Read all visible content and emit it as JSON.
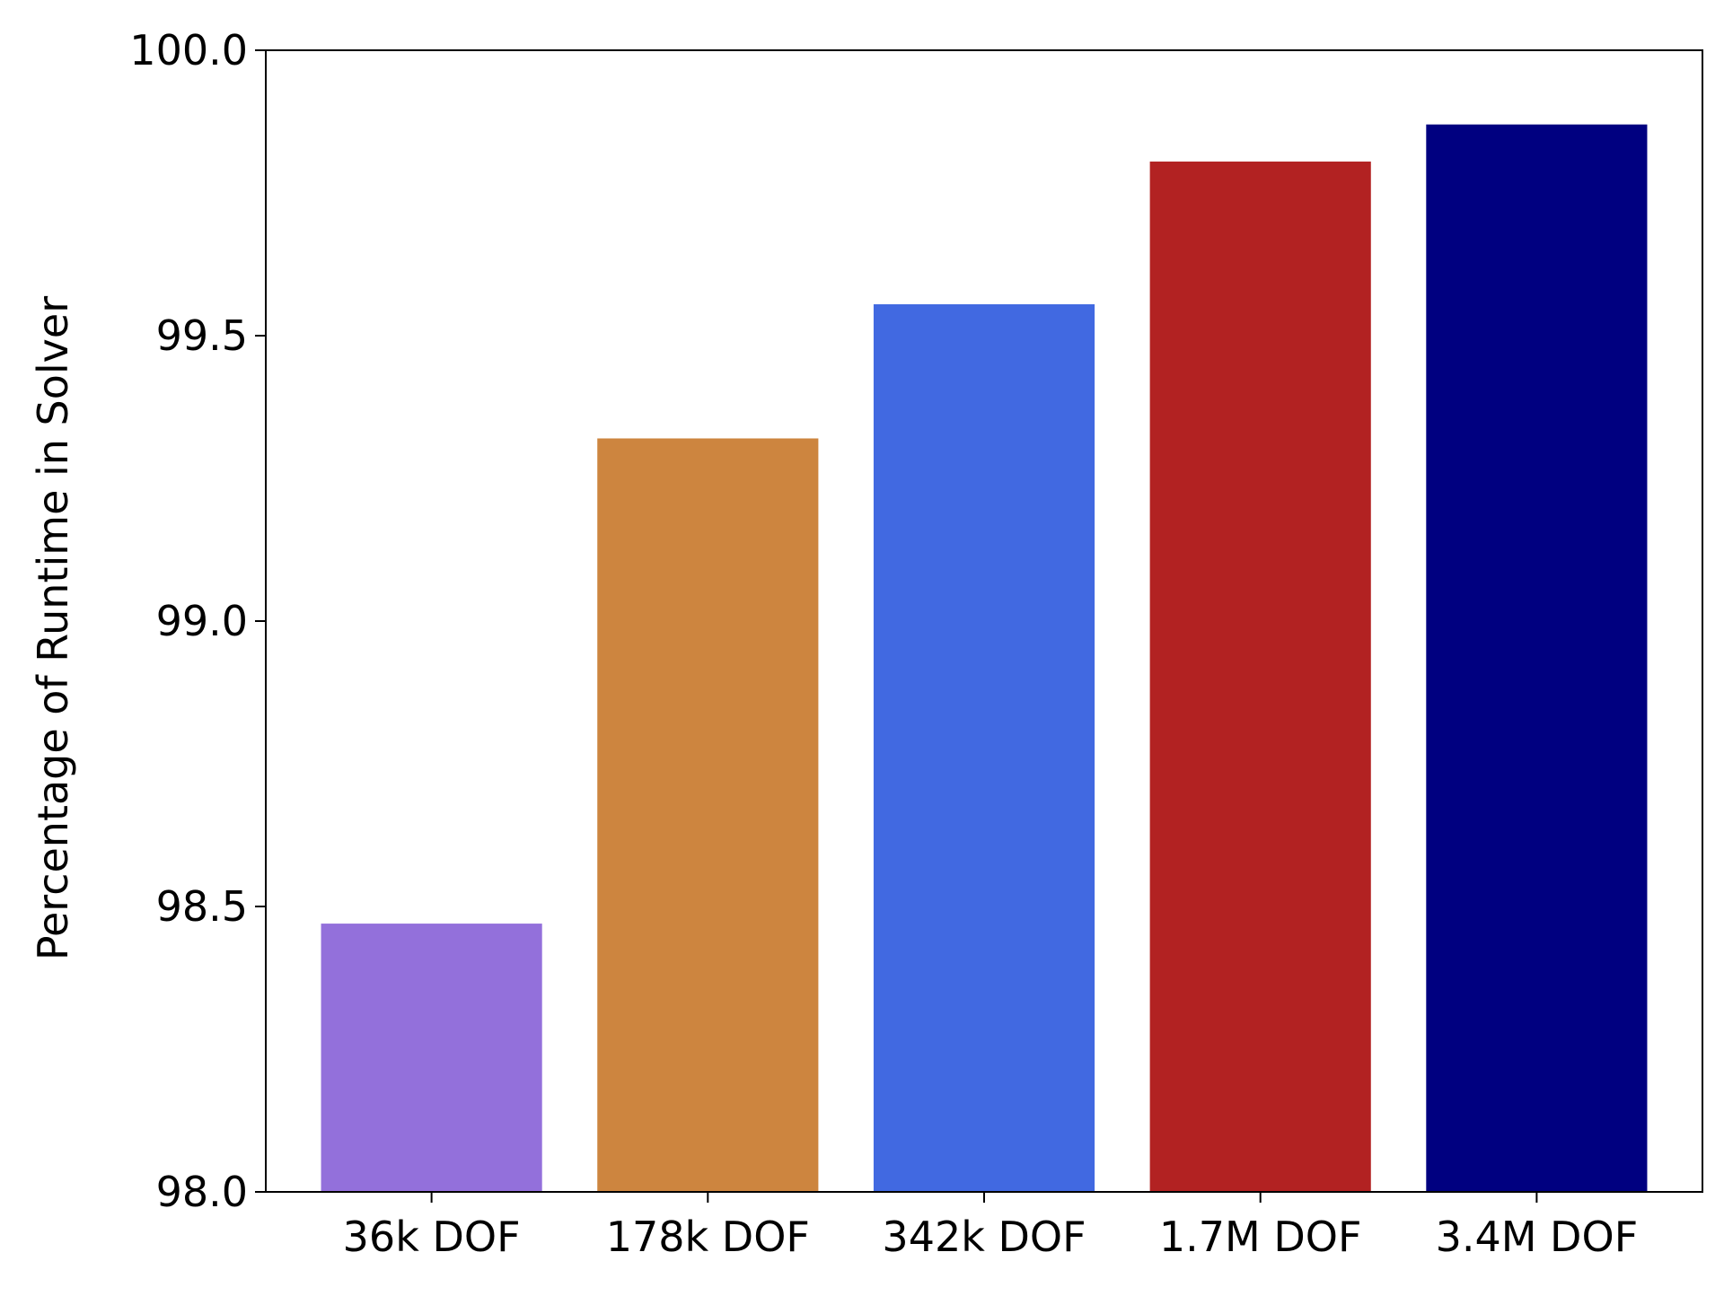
{
  "chart_data": {
    "type": "bar",
    "title": "",
    "xlabel": "",
    "ylabel": "Percentage of Runtime in Solver",
    "categories": [
      "36k DOF",
      "178k DOF",
      "342k DOF",
      "1.7M DOF",
      "3.4M DOF"
    ],
    "values": [
      98.47,
      99.32,
      99.555,
      99.805,
      99.87
    ],
    "colors": [
      "#9370DB",
      "#CD853F",
      "#4169E1",
      "#B22222",
      "#000080"
    ],
    "ylim": [
      98.0,
      100.0
    ],
    "yticks": [
      98.0,
      98.5,
      99.0,
      99.5,
      100.0
    ],
    "ytick_labels": [
      "98.0",
      "98.5",
      "99.0",
      "99.5",
      "100.0"
    ],
    "grid": false,
    "legend": "none"
  }
}
